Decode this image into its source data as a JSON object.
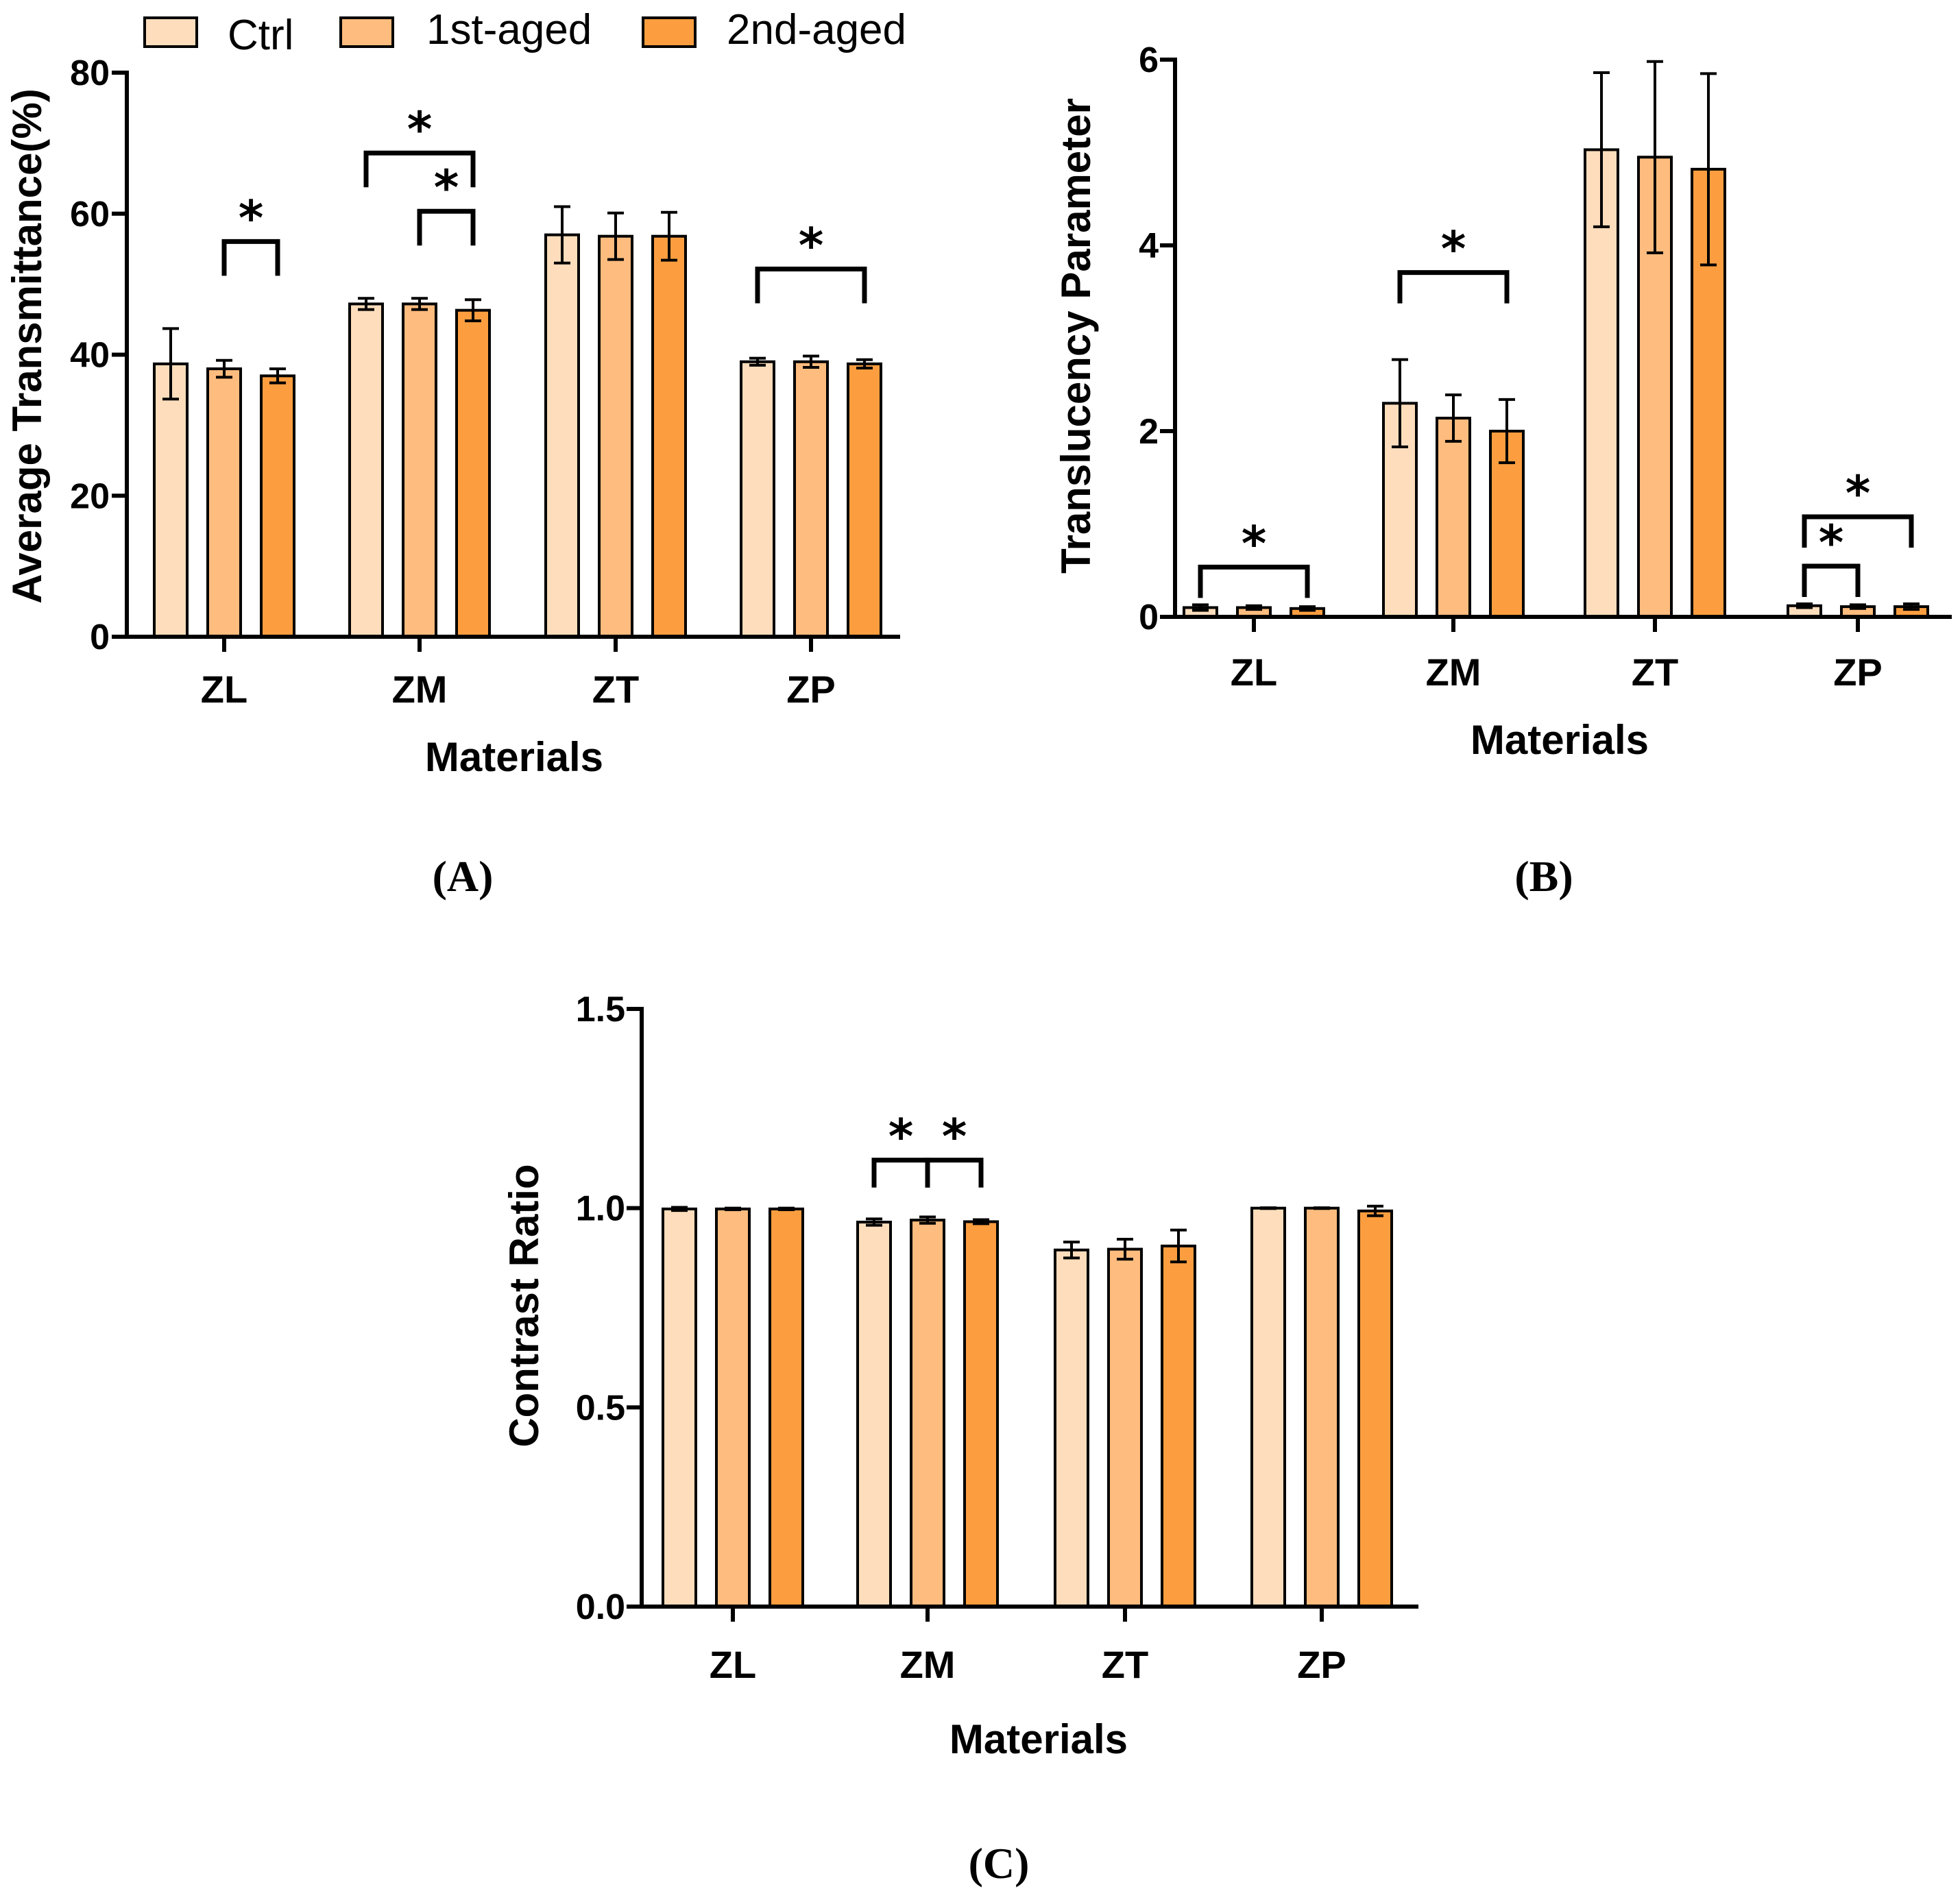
{
  "legend": {
    "items": [
      {
        "label": "Ctrl",
        "color": "#FDDDBB"
      },
      {
        "label": "1st-aged",
        "color": "#FEBC7E"
      },
      {
        "label": "2nd-aged",
        "color": "#FC9E3F"
      }
    ]
  },
  "chart_data": [
    {
      "id": "A",
      "type": "bar",
      "panel_label": "(A)",
      "categories": [
        "ZL",
        "ZM",
        "ZT",
        "ZP"
      ],
      "series": [
        {
          "name": "Ctrl",
          "values": [
            38.7,
            47.2,
            57.0,
            39.0
          ],
          "errors": [
            5.0,
            0.8,
            4.0,
            0.5
          ]
        },
        {
          "name": "1st-aged",
          "values": [
            38.0,
            47.2,
            56.8,
            39.0
          ],
          "errors": [
            1.2,
            0.8,
            3.3,
            0.8
          ]
        },
        {
          "name": "2nd-aged",
          "values": [
            37.0,
            46.3,
            56.8,
            38.7
          ],
          "errors": [
            1.0,
            1.5,
            3.4,
            0.6
          ]
        }
      ],
      "xlabel": "Materials",
      "ylabel": "Average Transmittance(%)",
      "ylim": [
        0,
        80
      ],
      "yticks": [
        "0",
        "20",
        "40",
        "60",
        "80"
      ],
      "significance": [
        {
          "category": 0,
          "from": 1,
          "to": 2,
          "level": 2,
          "label": "*"
        },
        {
          "category": 1,
          "from": 0,
          "to": 2,
          "level": 3,
          "label": "*"
        },
        {
          "category": 1,
          "from": 1,
          "to": 2,
          "level": 2,
          "label": "*"
        },
        {
          "category": 3,
          "from": 0,
          "to": 2,
          "level": 2,
          "label": "*"
        }
      ]
    },
    {
      "id": "B",
      "type": "bar",
      "panel_label": "(B)",
      "categories": [
        "ZL",
        "ZM",
        "ZT",
        "ZP"
      ],
      "series": [
        {
          "name": "Ctrl",
          "values": [
            0.1,
            2.3,
            5.03,
            0.12
          ],
          "errors": [
            0.03,
            0.47,
            0.83,
            0.02
          ]
        },
        {
          "name": "1st-aged",
          "values": [
            0.1,
            2.14,
            4.95,
            0.11
          ],
          "errors": [
            0.02,
            0.25,
            1.03,
            0.02
          ]
        },
        {
          "name": "2nd-aged",
          "values": [
            0.09,
            2.0,
            4.82,
            0.11
          ],
          "errors": [
            0.02,
            0.34,
            1.03,
            0.03
          ]
        }
      ],
      "xlabel": "Materials",
      "ylabel": "Translucency Parameter",
      "ylim": [
        0,
        6
      ],
      "yticks": [
        "0",
        "2",
        "4",
        "6"
      ],
      "significance": [
        {
          "category": 0,
          "from": 0,
          "to": 2,
          "level": 1,
          "label": "*"
        },
        {
          "category": 1,
          "from": 0,
          "to": 2,
          "level": 2,
          "label": "*"
        },
        {
          "category": 3,
          "from": 0,
          "to": 1,
          "level": 1,
          "label": "*"
        },
        {
          "category": 3,
          "from": 0,
          "to": 2,
          "level": 2,
          "label": "*"
        }
      ]
    },
    {
      "id": "C",
      "type": "bar",
      "panel_label": "(C)",
      "categories": [
        "ZL",
        "ZM",
        "ZT",
        "ZP"
      ],
      "series": [
        {
          "name": "Ctrl",
          "values": [
            0.998,
            0.965,
            0.895,
            1.0
          ],
          "errors": [
            0.004,
            0.008,
            0.02,
            0.001
          ]
        },
        {
          "name": "1st-aged",
          "values": [
            0.998,
            0.97,
            0.897,
            1.0
          ],
          "errors": [
            0.002,
            0.008,
            0.025,
            0.001
          ]
        },
        {
          "name": "2nd-aged",
          "values": [
            0.998,
            0.966,
            0.905,
            0.993
          ],
          "errors": [
            0.002,
            0.005,
            0.04,
            0.012
          ]
        }
      ],
      "xlabel": "Materials",
      "ylabel": "Contrast Ratio",
      "ylim": [
        0,
        1.5
      ],
      "yticks": [
        "0.0",
        "0.5",
        "1.0",
        "1.5"
      ],
      "significance": [
        {
          "category": 1,
          "from": 0,
          "to": 1,
          "level": 2,
          "label": "*"
        },
        {
          "category": 1,
          "from": 1,
          "to": 2,
          "level": 2,
          "label": "*"
        }
      ]
    }
  ]
}
